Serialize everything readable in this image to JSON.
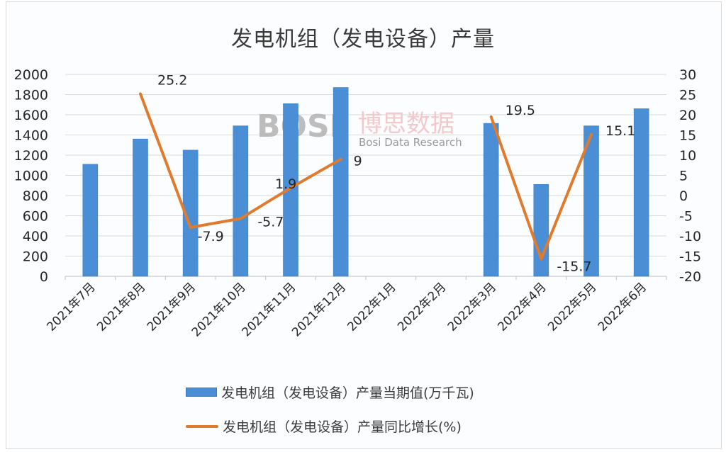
{
  "chart_data": {
    "type": "bar+line",
    "title": "发电机组（发电设备）产量",
    "categories": [
      "2021年7月",
      "2021年8月",
      "2021年9月",
      "2021年10月",
      "2021年11月",
      "2021年12月",
      "2022年1月",
      "2022年2月",
      "2022年3月",
      "2022年4月",
      "2022年5月",
      "2022年6月"
    ],
    "series": [
      {
        "name": "发电机组（发电设备）产量当期值(万千瓦)",
        "type": "bar",
        "axis": "left",
        "color": "#4a8fd6",
        "values": [
          1110,
          1360,
          1250,
          1490,
          1710,
          1870,
          null,
          null,
          1515,
          910,
          1490,
          1660
        ]
      },
      {
        "name": "发电机组（发电设备）产量同比增长(%)",
        "type": "line",
        "axis": "right",
        "color": "#e07b2e",
        "values": [
          null,
          25.2,
          -7.9,
          -5.7,
          1.9,
          9,
          null,
          null,
          19.5,
          -15.7,
          15.1,
          null
        ]
      }
    ],
    "left_axis": {
      "ylim": [
        0,
        2000
      ],
      "ticks": [
        0,
        200,
        400,
        600,
        800,
        1000,
        1200,
        1400,
        1600,
        1800,
        2000
      ]
    },
    "right_axis": {
      "ylim": [
        -20,
        30
      ],
      "ticks": [
        -20,
        -15,
        -10,
        -5,
        0,
        5,
        10,
        15,
        20,
        25,
        30
      ]
    },
    "data_labels": [
      "25.2",
      "-7.9",
      "-5.7",
      "1.9",
      "9",
      "19.5",
      "-15.7",
      "15.1"
    ],
    "grid": true,
    "legend_position": "bottom"
  },
  "watermark": {
    "cn": "博思数据",
    "en": "Bosi Data Research",
    "logo": "BOSI"
  },
  "legend": {
    "bar_label": "发电机组（发电设备）产量当期值(万千瓦)",
    "line_label": "发电机组（发电设备）产量同比增长(%)"
  }
}
